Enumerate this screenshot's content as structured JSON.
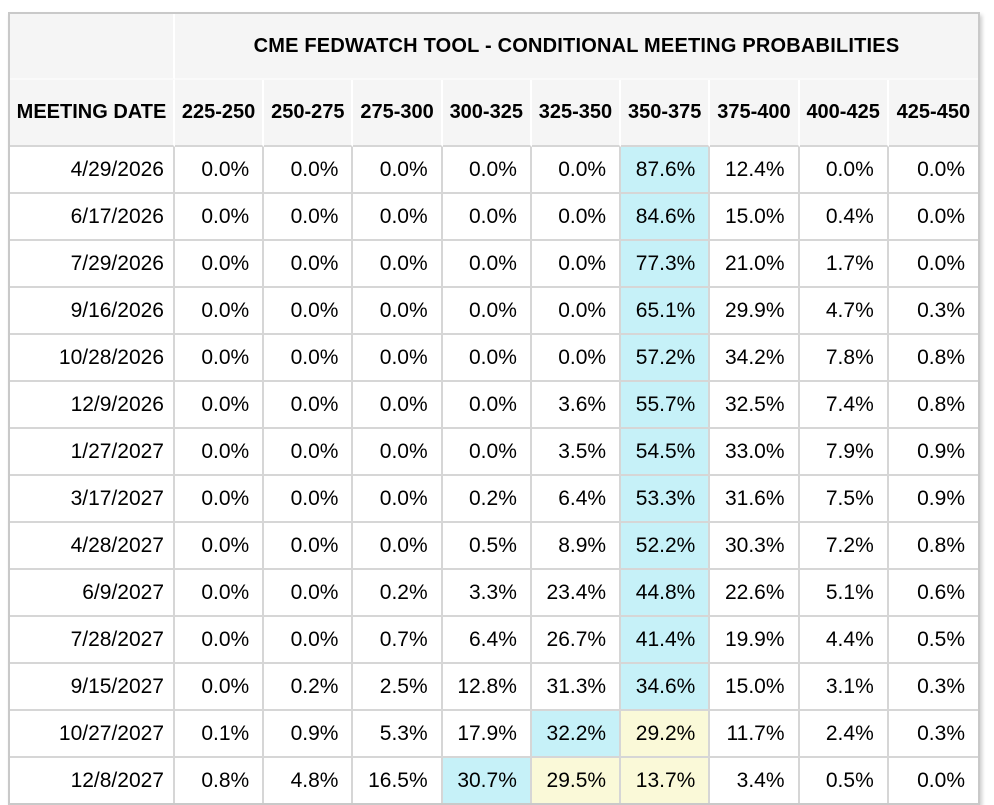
{
  "table": {
    "title": "CME FEDWATCH TOOL - CONDITIONAL MEETING PROBABILITIES",
    "date_column_header": "MEETING DATE",
    "rate_headers": [
      "225-250",
      "250-275",
      "275-300",
      "300-325",
      "325-350",
      "350-375",
      "375-400",
      "400-425",
      "425-450"
    ],
    "rows": [
      {
        "date": "4/29/2026",
        "values": [
          "0.0%",
          "0.0%",
          "0.0%",
          "0.0%",
          "0.0%",
          "87.6%",
          "12.4%",
          "0.0%",
          "0.0%"
        ],
        "highlights": {
          "5": "cyan"
        }
      },
      {
        "date": "6/17/2026",
        "values": [
          "0.0%",
          "0.0%",
          "0.0%",
          "0.0%",
          "0.0%",
          "84.6%",
          "15.0%",
          "0.4%",
          "0.0%"
        ],
        "highlights": {
          "5": "cyan"
        }
      },
      {
        "date": "7/29/2026",
        "values": [
          "0.0%",
          "0.0%",
          "0.0%",
          "0.0%",
          "0.0%",
          "77.3%",
          "21.0%",
          "1.7%",
          "0.0%"
        ],
        "highlights": {
          "5": "cyan"
        }
      },
      {
        "date": "9/16/2026",
        "values": [
          "0.0%",
          "0.0%",
          "0.0%",
          "0.0%",
          "0.0%",
          "65.1%",
          "29.9%",
          "4.7%",
          "0.3%"
        ],
        "highlights": {
          "5": "cyan"
        }
      },
      {
        "date": "10/28/2026",
        "values": [
          "0.0%",
          "0.0%",
          "0.0%",
          "0.0%",
          "0.0%",
          "57.2%",
          "34.2%",
          "7.8%",
          "0.8%"
        ],
        "highlights": {
          "5": "cyan"
        }
      },
      {
        "date": "12/9/2026",
        "values": [
          "0.0%",
          "0.0%",
          "0.0%",
          "0.0%",
          "3.6%",
          "55.7%",
          "32.5%",
          "7.4%",
          "0.8%"
        ],
        "highlights": {
          "5": "cyan"
        }
      },
      {
        "date": "1/27/2027",
        "values": [
          "0.0%",
          "0.0%",
          "0.0%",
          "0.0%",
          "3.5%",
          "54.5%",
          "33.0%",
          "7.9%",
          "0.9%"
        ],
        "highlights": {
          "5": "cyan"
        }
      },
      {
        "date": "3/17/2027",
        "values": [
          "0.0%",
          "0.0%",
          "0.0%",
          "0.2%",
          "6.4%",
          "53.3%",
          "31.6%",
          "7.5%",
          "0.9%"
        ],
        "highlights": {
          "5": "cyan"
        }
      },
      {
        "date": "4/28/2027",
        "values": [
          "0.0%",
          "0.0%",
          "0.0%",
          "0.5%",
          "8.9%",
          "52.2%",
          "30.3%",
          "7.2%",
          "0.8%"
        ],
        "highlights": {
          "5": "cyan"
        }
      },
      {
        "date": "6/9/2027",
        "values": [
          "0.0%",
          "0.0%",
          "0.2%",
          "3.3%",
          "23.4%",
          "44.8%",
          "22.6%",
          "5.1%",
          "0.6%"
        ],
        "highlights": {
          "5": "cyan"
        }
      },
      {
        "date": "7/28/2027",
        "values": [
          "0.0%",
          "0.0%",
          "0.7%",
          "6.4%",
          "26.7%",
          "41.4%",
          "19.9%",
          "4.4%",
          "0.5%"
        ],
        "highlights": {
          "5": "cyan"
        }
      },
      {
        "date": "9/15/2027",
        "values": [
          "0.0%",
          "0.2%",
          "2.5%",
          "12.8%",
          "31.3%",
          "34.6%",
          "15.0%",
          "3.1%",
          "0.3%"
        ],
        "highlights": {
          "5": "cyan"
        }
      },
      {
        "date": "10/27/2027",
        "values": [
          "0.1%",
          "0.9%",
          "5.3%",
          "17.9%",
          "32.2%",
          "29.2%",
          "11.7%",
          "2.4%",
          "0.3%"
        ],
        "highlights": {
          "4": "cyan",
          "5": "yellow"
        }
      },
      {
        "date": "12/8/2027",
        "values": [
          "0.8%",
          "4.8%",
          "16.5%",
          "30.7%",
          "29.5%",
          "13.7%",
          "3.4%",
          "0.5%",
          "0.0%"
        ],
        "highlights": {
          "3": "cyan",
          "4": "yellow",
          "5": "yellow"
        }
      }
    ],
    "colors": {
      "highlight_cyan": "#c6f1f8",
      "highlight_yellow": "#faf9d8",
      "header_background": "#f5f5f5",
      "body_border": "#d6d6d6",
      "outer_border": "#c9c9c9",
      "text": "#000000"
    }
  }
}
